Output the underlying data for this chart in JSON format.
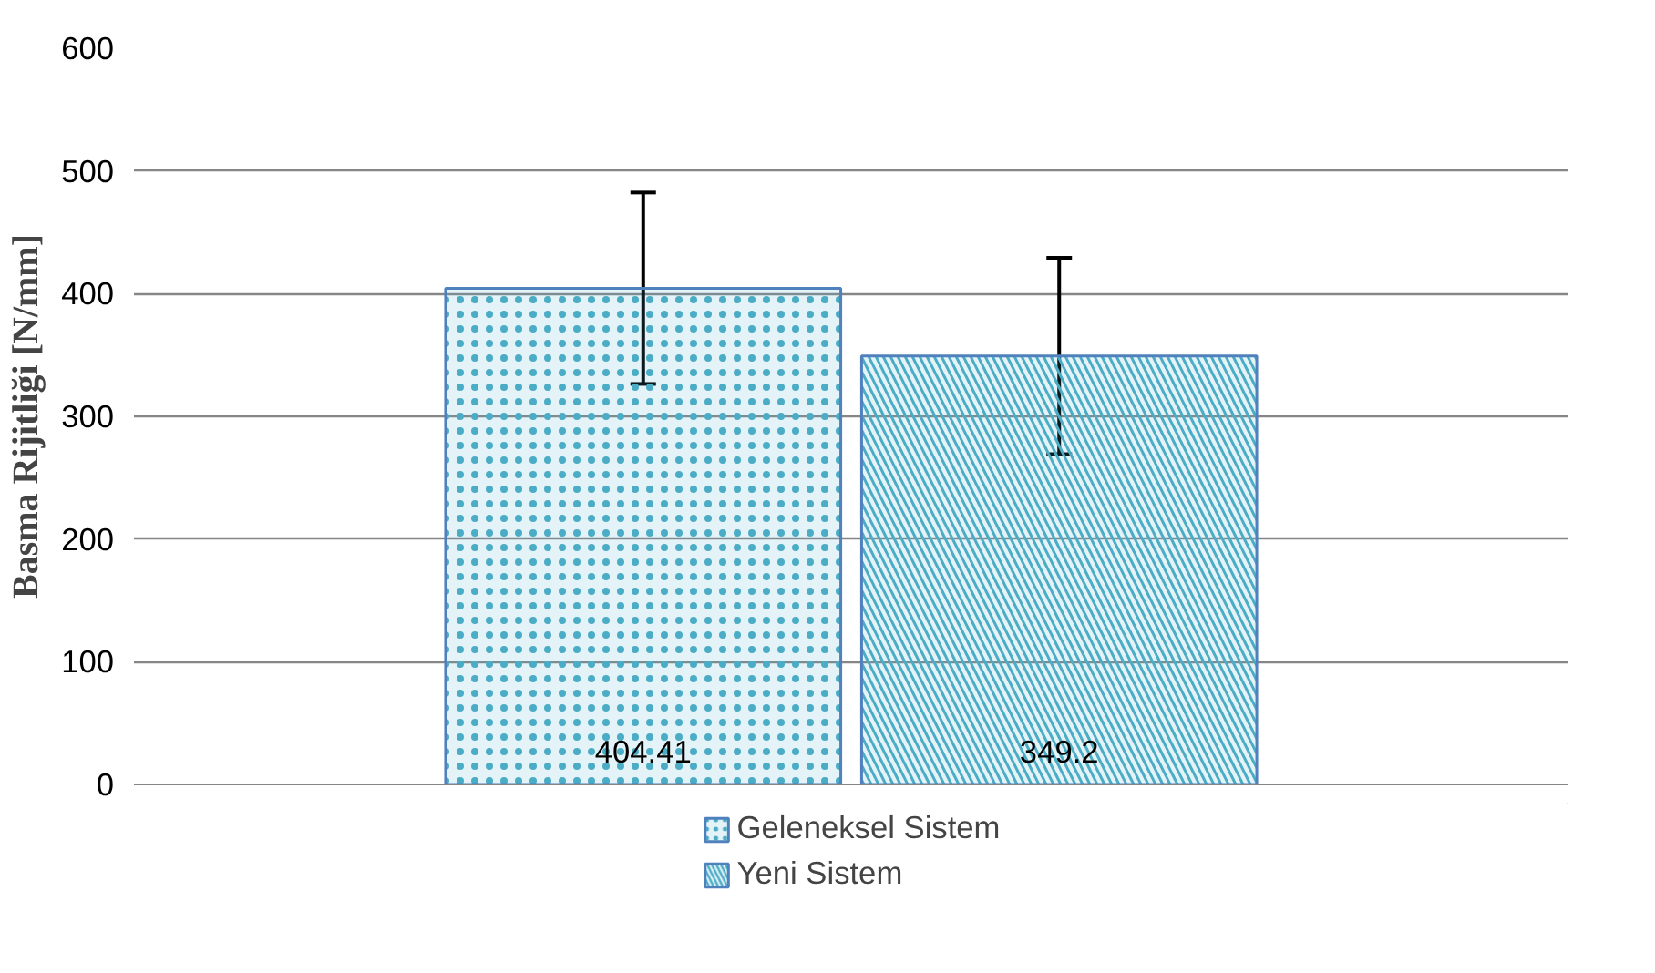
{
  "chart_data": {
    "type": "bar",
    "ylabel": "Basma Rijitliği [N/mm]",
    "categories": [
      null
    ],
    "series": [
      {
        "name": "Geleneksel Sistem",
        "color": "#4bacc6",
        "values": [
          404.41
        ],
        "errors": [
          78
        ]
      },
      {
        "name": "Yeni Sistem",
        "color": "#4bacc6",
        "values": [
          349.2
        ],
        "errors": [
          80
        ]
      }
    ],
    "ylim": [
      0,
      600
    ],
    "yticks": [
      0,
      100,
      200,
      300,
      400,
      500,
      600
    ],
    "grid": "y",
    "legend": "bottom",
    "data_labels": true,
    "tick_labels": "y"
  }
}
